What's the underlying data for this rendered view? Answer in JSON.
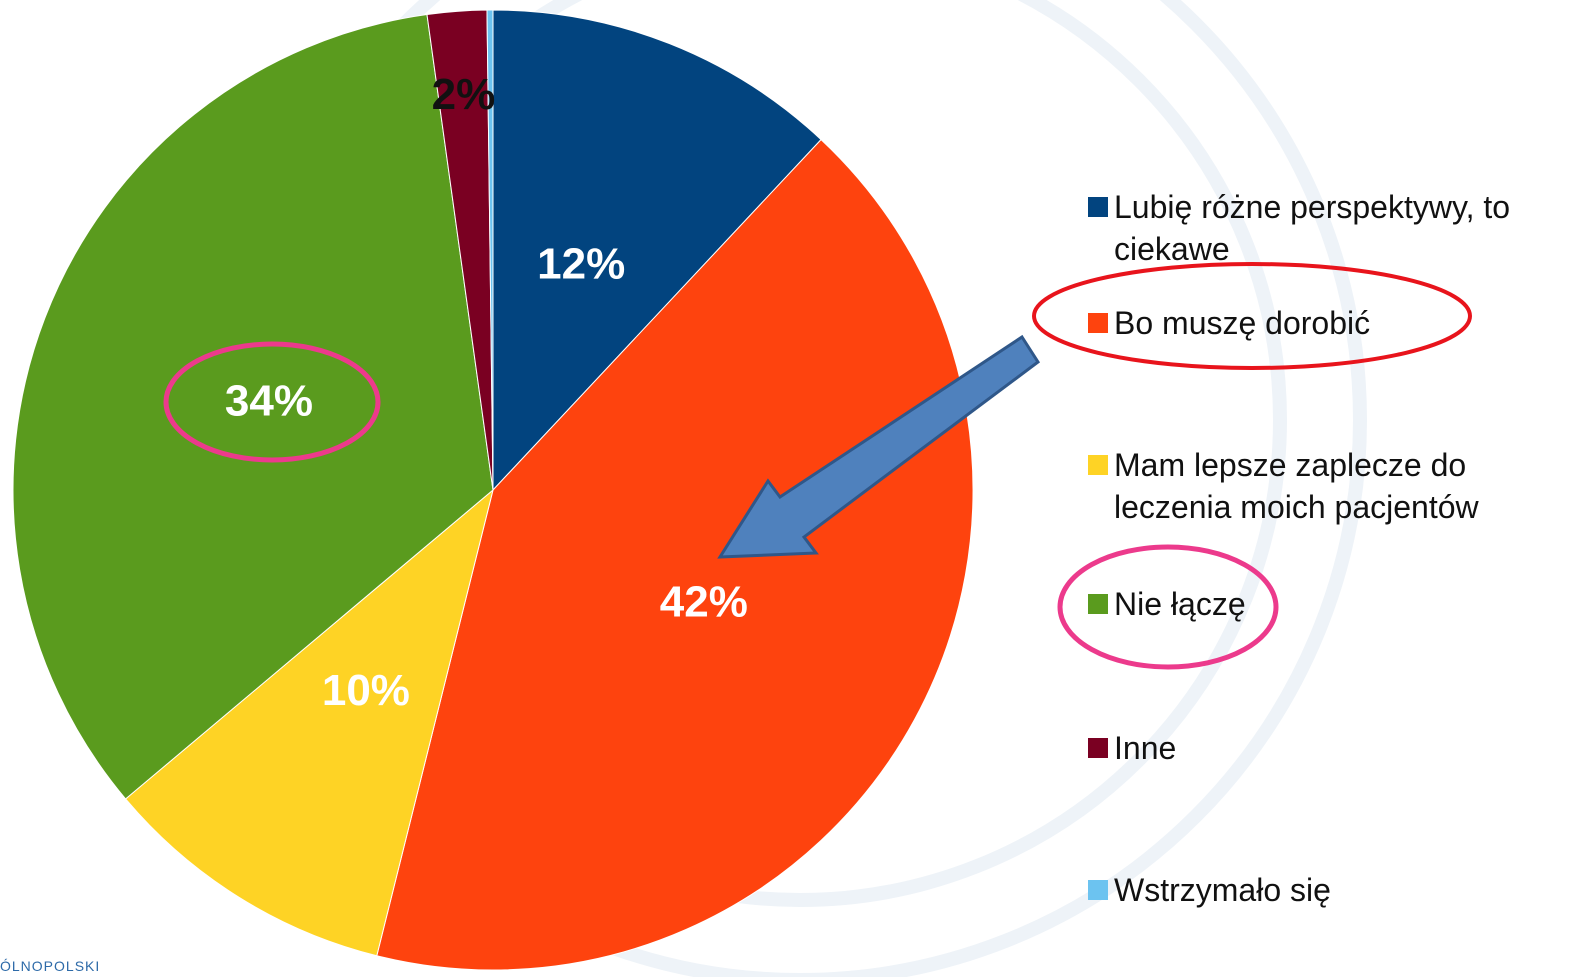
{
  "chart_data": {
    "type": "pie",
    "categories": [
      "Lubię różne perspektywy, to ciekawe",
      "Bo muszę dorobić",
      "Mam lepsze zaplecze do leczenia moich pacjentów",
      "Nie łączę",
      "Inne",
      "Wstrzymało się"
    ],
    "values": [
      12,
      42,
      10,
      34,
      2,
      0.2
    ],
    "value_labels": [
      "12%",
      "42%",
      "10%",
      "34%",
      "2%",
      null
    ],
    "colors": [
      "#02447f",
      "#fe430e",
      "#fed325",
      "#5a9b1e",
      "#7a0022",
      "#6cc3f0"
    ],
    "legend": "right"
  },
  "footer": "ÓLNOPOLSKI"
}
